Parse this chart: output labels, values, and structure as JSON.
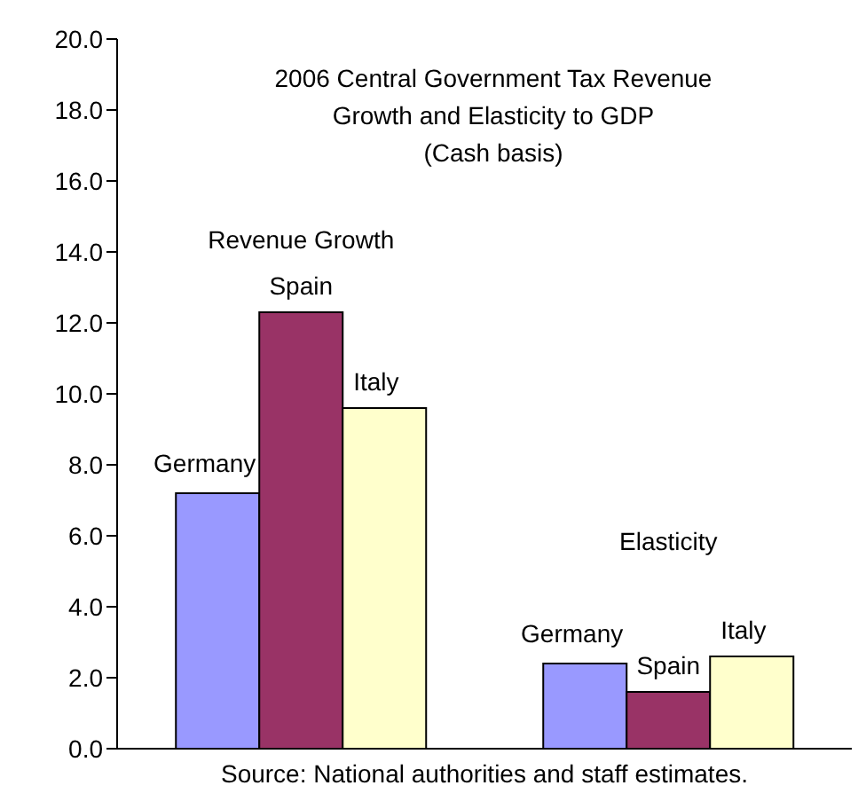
{
  "chart_data": {
    "type": "bar",
    "title": "2006 Central Government Tax Revenue\nGrowth and Elasticity to GDP\n(Cash basis)",
    "categories": [
      "Revenue Growth",
      "Elasticity"
    ],
    "series": [
      {
        "name": "Germany",
        "color": "#9999ff",
        "values": [
          7.2,
          2.4
        ]
      },
      {
        "name": "Spain",
        "color": "#993366",
        "values": [
          12.3,
          1.6
        ]
      },
      {
        "name": "Italy",
        "color": "#ffffcc",
        "values": [
          9.6,
          2.6
        ]
      }
    ],
    "ylim": [
      0,
      20
    ],
    "yticks": [
      {
        "value": 0,
        "label": "0.0"
      },
      {
        "value": 2,
        "label": "2.0"
      },
      {
        "value": 4,
        "label": "4.0"
      },
      {
        "value": 6,
        "label": "6.0"
      },
      {
        "value": 8,
        "label": "8.0"
      },
      {
        "value": 10,
        "label": "10.0"
      },
      {
        "value": 12,
        "label": "12.0"
      },
      {
        "value": 14,
        "label": "14.0"
      },
      {
        "value": 16,
        "label": "16.0"
      },
      {
        "value": 18,
        "label": "18.0"
      },
      {
        "value": 20,
        "label": "20.0"
      }
    ],
    "annotations": [
      "Source: National authorities and staff estimates."
    ]
  }
}
